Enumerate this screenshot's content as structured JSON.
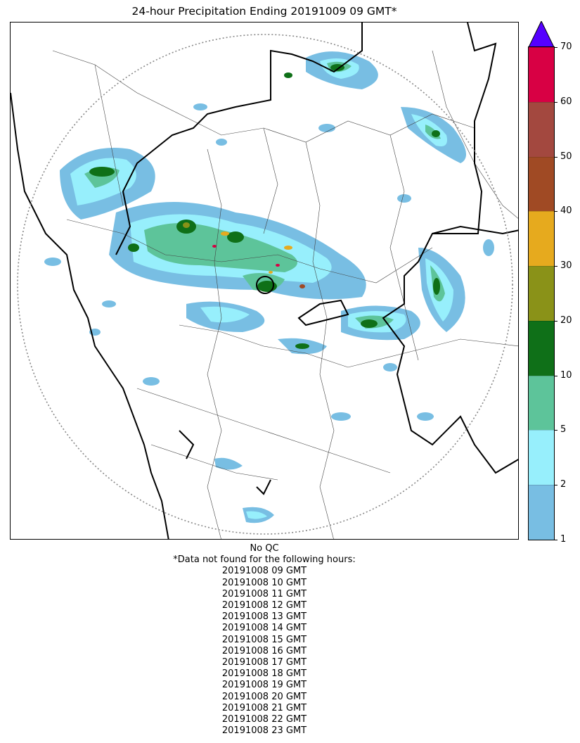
{
  "title": "24-hour Precipitation Ending 20191009 09 GMT*",
  "colorbar": {
    "ticks": [
      "1",
      "2",
      "5",
      "10",
      "20",
      "30",
      "40",
      "50",
      "60",
      "70"
    ],
    "bins": [
      {
        "from": "1",
        "to": "2",
        "color": "#78BEE3"
      },
      {
        "from": "2",
        "to": "5",
        "color": "#97EFFC"
      },
      {
        "from": "5",
        "to": "10",
        "color": "#5DC49A"
      },
      {
        "from": "10",
        "to": "20",
        "color": "#0F7018"
      },
      {
        "from": "20",
        "to": "30",
        "color": "#8A9218"
      },
      {
        "from": "30",
        "to": "40",
        "color": "#E6AA1E"
      },
      {
        "from": "40",
        "to": "50",
        "color": "#A04A24"
      },
      {
        "from": "50",
        "to": "60",
        "color": "#A3483F"
      },
      {
        "from": "60",
        "to": "70",
        "color": "#D80044"
      }
    ],
    "extend_color": "#5500FF"
  },
  "notes": {
    "qc": "No QC",
    "missing_header": "*Data not found for the following hours:",
    "missing_hours": [
      "20191008 09 GMT",
      "20191008 10 GMT",
      "20191008 11 GMT",
      "20191008 12 GMT",
      "20191008 13 GMT",
      "20191008 14 GMT",
      "20191008 15 GMT",
      "20191008 16 GMT",
      "20191008 17 GMT",
      "20191008 18 GMT",
      "20191008 19 GMT",
      "20191008 20 GMT",
      "20191008 21 GMT",
      "20191008 22 GMT",
      "20191008 23 GMT"
    ]
  }
}
